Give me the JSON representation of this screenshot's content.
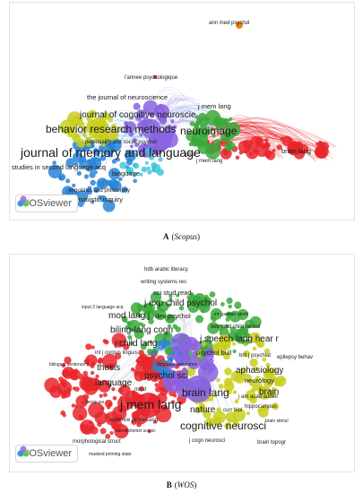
{
  "panel_a": {
    "logo_text": "VOSviewer",
    "caption_letter": "A",
    "caption_source": "Scopus",
    "labels": [
      {
        "text": "ann med psychol",
        "s": "s1"
      },
      {
        "text": "l'annee psychologique",
        "s": "s1"
      },
      {
        "text": "the journal of neuroscience",
        "s": "s2"
      },
      {
        "text": "j mem lang",
        "s": "s2"
      },
      {
        "text": "journal of cognitive neuroscie",
        "s": "s3"
      },
      {
        "text": "behavior research methods",
        "s": "s4"
      },
      {
        "text": "neuroimage",
        "s": "s4"
      },
      {
        "text": "personality and social psychol",
        "s": "s1"
      },
      {
        "text": "journal of memory and language",
        "s": "s5"
      },
      {
        "text": "plos",
        "s": "s1"
      },
      {
        "text": "brain lang",
        "s": "s2"
      },
      {
        "text": "j mem lang",
        "s": "s1"
      },
      {
        "text": "studies in second language acq",
        "s": "s2"
      },
      {
        "text": "language",
        "s": "s2"
      },
      {
        "text": "linguistics and philosophy",
        "s": "s1"
      },
      {
        "text": "linguistic inquiry",
        "s": "s2"
      }
    ]
  },
  "panel_b": {
    "logo_text": "VOSviewer",
    "caption_letter": "B",
    "caption_source": "WOS",
    "labels": [
      {
        "text": "hdb arabic literacy",
        "s": "s1"
      },
      {
        "text": "writing systems res",
        "s": "s1"
      },
      {
        "text": "sci stud read",
        "s": "s2"
      },
      {
        "text": "input 2 language acq",
        "s": "s0"
      },
      {
        "text": "j exp child psychol",
        "s": "s3"
      },
      {
        "text": "mod lang j",
        "s": "s3"
      },
      {
        "text": "dev psychol",
        "s": "s2"
      },
      {
        "text": "int j pediatr otorhi",
        "s": "s0"
      },
      {
        "text": "dev med child neurol",
        "s": "s1"
      },
      {
        "text": "biling-lang cogn",
        "s": "s3"
      },
      {
        "text": "j speech lang hear r",
        "s": "s3"
      },
      {
        "text": "j child lang",
        "s": "s3"
      },
      {
        "text": "int j corpus linguis",
        "s": "s1"
      },
      {
        "text": "psychol bull",
        "s": "s2"
      },
      {
        "text": "brit j psychiat",
        "s": "s1"
      },
      {
        "text": "epilepsy behav",
        "s": "s1"
      },
      {
        "text": "bilingual sentence p",
        "s": "s0"
      },
      {
        "text": "thesis",
        "s": "s3"
      },
      {
        "text": "language perception",
        "s": "s0"
      },
      {
        "text": "aphasiology",
        "s": "s3"
      },
      {
        "text": "psychol sci",
        "s": "s3"
      },
      {
        "text": "neurology",
        "s": "s2"
      },
      {
        "text": "language",
        "s": "s3"
      },
      {
        "text": "mind",
        "s": "s1"
      },
      {
        "text": "brain lang",
        "s": "s4"
      },
      {
        "text": "brain",
        "s": "s3"
      },
      {
        "text": "j am acad audiol",
        "s": "s1"
      },
      {
        "text": "thesis res",
        "s": "s0"
      },
      {
        "text": "j mem lang",
        "s": "s5"
      },
      {
        "text": "nature",
        "s": "s3"
      },
      {
        "text": "curr biol",
        "s": "s1"
      },
      {
        "text": "hippocampus",
        "s": "s1"
      },
      {
        "text": "brain stimul",
        "s": "s0"
      },
      {
        "text": "sentence processing",
        "s": "s1"
      },
      {
        "text": "cognitive neurosci",
        "s": "s4"
      },
      {
        "text": "connectionist scienc",
        "s": "s0"
      },
      {
        "text": "j cogn neurosci",
        "s": "s1"
      },
      {
        "text": "brain topogr",
        "s": "s1"
      },
      {
        "text": "morphological struct",
        "s": "s1"
      },
      {
        "text": "masked priming state",
        "s": "s0"
      }
    ]
  },
  "colors": {
    "red": "#e8262c",
    "green": "#3aa93a",
    "blue": "#2a84d6",
    "yellow": "#c9cf1c",
    "purple": "#8a63e0",
    "orange": "#f07f16",
    "cyan": "#36c4d8",
    "label_color": "#1a1a1a"
  }
}
